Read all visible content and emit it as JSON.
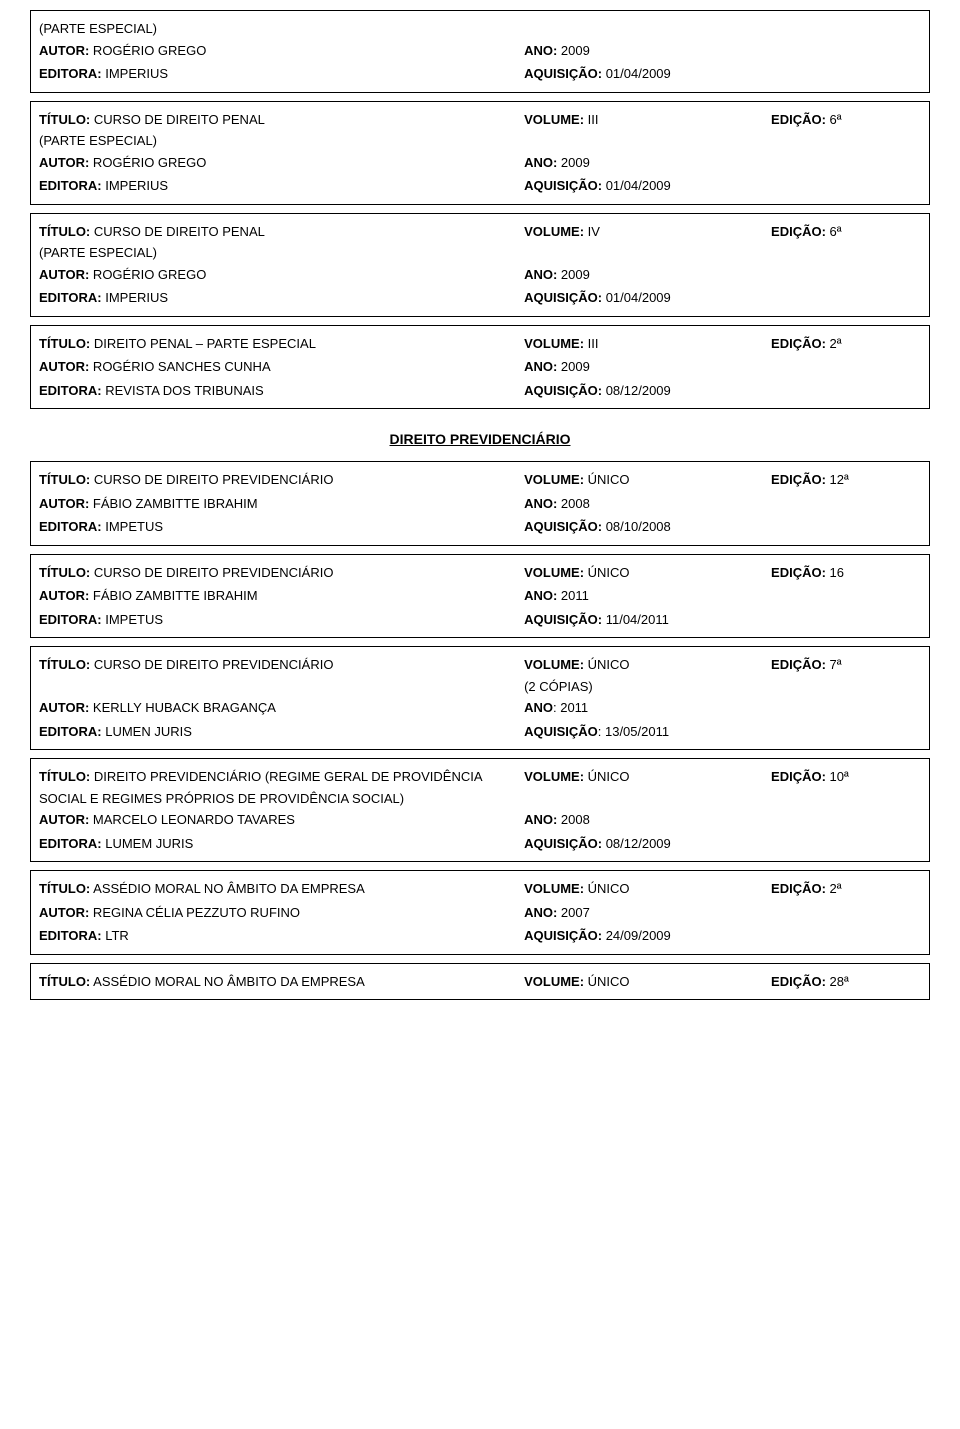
{
  "headingPrevidenciario": "DIREITO PREVIDENCIÁRIO",
  "entries": [
    {
      "lines": [
        {
          "left_parts": [
            "(PARTE ESPECIAL)"
          ],
          "mid": "",
          "right": ""
        },
        {
          "left_parts": [
            "AUTOR:",
            " ROGÉRIO GREGO"
          ],
          "mid_parts": [
            "ANO:",
            " 2009"
          ],
          "right": ""
        },
        {
          "left_parts": [
            ""
          ],
          "mid": "",
          "right": ""
        },
        {
          "left_parts": [
            "EDITORA:",
            " IMPERIUS"
          ],
          "mid_parts": [
            "AQUISIÇÃO:",
            " 01/04/2009"
          ],
          "right": ""
        }
      ]
    },
    {
      "lines": [
        {
          "left_parts": [
            "TÍTULO:",
            " CURSO DE DIREITO PENAL"
          ],
          "mid_parts": [
            "VOLUME:",
            " III"
          ],
          "right_parts": [
            "EDIÇÃO:",
            " 6ª"
          ]
        },
        {
          "left_parts": [
            "(PARTE ESPECIAL)"
          ],
          "mid": "",
          "right": ""
        },
        {
          "left_parts": [
            "AUTOR:",
            " ROGÉRIO GREGO"
          ],
          "mid_parts": [
            "ANO:",
            " 2009"
          ],
          "right": ""
        },
        {
          "left_parts": [
            ""
          ],
          "mid": "",
          "right": ""
        },
        {
          "left_parts": [
            "EDITORA:",
            " IMPERIUS"
          ],
          "mid_parts": [
            "AQUISIÇÃO:",
            " 01/04/2009"
          ],
          "right": ""
        }
      ]
    },
    {
      "lines": [
        {
          "left_parts": [
            "TÍTULO:",
            " CURSO DE DIREITO PENAL"
          ],
          "mid_parts": [
            "VOLUME:",
            " IV"
          ],
          "right_parts": [
            "EDIÇÃO:",
            " 6ª"
          ]
        },
        {
          "left_parts": [
            "(PARTE ESPECIAL)"
          ],
          "mid": "",
          "right": ""
        },
        {
          "left_parts": [
            "AUTOR:",
            " ROGÉRIO GREGO"
          ],
          "mid_parts": [
            "ANO:",
            " 2009"
          ],
          "right": ""
        },
        {
          "left_parts": [
            ""
          ],
          "mid": "",
          "right": ""
        },
        {
          "left_parts": [
            "EDITORA:",
            " IMPERIUS"
          ],
          "mid_parts": [
            "AQUISIÇÃO:",
            " 01/04/2009"
          ],
          "right": ""
        }
      ]
    },
    {
      "lines": [
        {
          "left_parts": [
            "TÍTULO:",
            " DIREITO PENAL – PARTE ESPECIAL"
          ],
          "mid_parts": [
            "VOLUME:",
            " III"
          ],
          "right_parts": [
            "EDIÇÃO:",
            " 2ª"
          ]
        },
        {
          "left_parts": [
            ""
          ],
          "mid": "",
          "right": ""
        },
        {
          "left_parts": [
            "AUTOR:",
            " ROGÉRIO SANCHES CUNHA"
          ],
          "mid_parts": [
            "ANO:",
            " 2009"
          ],
          "right": ""
        },
        {
          "left_parts": [
            ""
          ],
          "mid": "",
          "right": ""
        },
        {
          "left_parts": [
            "EDITORA:",
            " REVISTA DOS TRIBUNAIS"
          ],
          "mid_parts": [
            "AQUISIÇÃO:",
            " 08/12/2009"
          ],
          "right": ""
        }
      ]
    }
  ],
  "entries2": [
    {
      "lines": [
        {
          "left_parts": [
            "TÍTULO:",
            " CURSO DE DIREITO PREVIDENCIÁRIO"
          ],
          "mid_parts": [
            "VOLUME:",
            " ÚNICO"
          ],
          "right_parts": [
            "EDIÇÃO:",
            " 12ª"
          ]
        },
        {
          "left_parts": [
            ""
          ],
          "mid": "",
          "right": ""
        },
        {
          "left_parts": [
            "AUTOR:",
            " FÁBIO ZAMBITTE IBRAHIM"
          ],
          "mid_parts": [
            "ANO:",
            " 2008"
          ],
          "right": ""
        },
        {
          "left_parts": [
            ""
          ],
          "mid": "",
          "right": ""
        },
        {
          "left_parts": [
            "EDITORA:",
            " IMPETUS"
          ],
          "mid_parts": [
            "AQUISIÇÃO:",
            " 08/10/2008"
          ],
          "right": ""
        }
      ]
    },
    {
      "lines": [
        {
          "left_parts": [
            "TÍTULO:",
            " CURSO DE DIREITO PREVIDENCIÁRIO"
          ],
          "mid_parts": [
            "VOLUME:",
            " ÚNICO"
          ],
          "right_parts": [
            "EDIÇÃO:",
            " 16"
          ]
        },
        {
          "left_parts": [
            ""
          ],
          "mid": "",
          "right": ""
        },
        {
          "left_parts": [
            "AUTOR:",
            " FÁBIO ZAMBITTE IBRAHIM"
          ],
          "mid_parts": [
            "ANO:",
            " 2011"
          ],
          "right": ""
        },
        {
          "left_parts": [
            ""
          ],
          "mid": "",
          "right": ""
        },
        {
          "left_parts": [
            "EDITORA:",
            " IMPETUS"
          ],
          "mid_parts": [
            "AQUISIÇÃO:",
            " 11/04/2011"
          ],
          "right": ""
        }
      ]
    },
    {
      "lines": [
        {
          "left_parts": [
            "TÍTULO:",
            " CURSO DE DIREITO PREVIDENCIÁRIO"
          ],
          "mid_parts": [
            "VOLUME:",
            " ÚNICO"
          ],
          "right_parts": [
            "EDIÇÃO:",
            " 7ª"
          ]
        },
        {
          "left_parts": [
            ""
          ],
          "mid_parts": [
            "(2 CÓPIAS)"
          ],
          "right": ""
        },
        {
          "left_parts": [
            "AUTOR:",
            " KERLLY HUBACK BRAGANÇA"
          ],
          "mid_parts": [
            "ANO",
            ": 2011"
          ],
          "right": ""
        },
        {
          "left_parts": [
            ""
          ],
          "mid": "",
          "right": ""
        },
        {
          "left_parts": [
            "EDITORA:",
            " LUMEN JURIS"
          ],
          "mid_parts": [
            "AQUISIÇÃO",
            ": 13/05/2011"
          ],
          "right": ""
        }
      ]
    },
    {
      "lines": [
        {
          "left_parts": [
            "TÍTULO:",
            " DIREITO PREVIDENCIÁRIO (REGIME GERAL DE PROVIDÊNCIA"
          ],
          "mid_parts": [
            "VOLUME:",
            " ÚNICO"
          ],
          "right_parts": [
            "EDIÇÃO:",
            " 10ª"
          ]
        },
        {
          "left_parts": [
            "SOCIAL E REGIMES PRÓPRIOS DE PROVIDÊNCIA SOCIAL)"
          ],
          "mid": "",
          "right": ""
        },
        {
          "left_parts": [
            "AUTOR:",
            " MARCELO LEONARDO TAVARES"
          ],
          "mid_parts": [
            "ANO:",
            " 2008"
          ],
          "right": ""
        },
        {
          "left_parts": [
            ""
          ],
          "mid": "",
          "right": ""
        },
        {
          "left_parts": [
            "EDITORA:",
            " LUMEM JURIS"
          ],
          "mid_parts": [
            "AQUISIÇÃO:",
            " 08/12/2009"
          ],
          "right": ""
        }
      ]
    },
    {
      "lines": [
        {
          "left_parts": [
            "TÍTULO:",
            " ASSÉDIO MORAL NO ÂMBITO DA EMPRESA"
          ],
          "mid_parts": [
            "VOLUME:",
            " ÚNICO"
          ],
          "right_parts": [
            "EDIÇÃO:",
            " 2ª"
          ]
        },
        {
          "left_parts": [
            ""
          ],
          "mid": "",
          "right": ""
        },
        {
          "left_parts": [
            "AUTOR:",
            " REGINA CÉLIA PEZZUTO RUFINO"
          ],
          "mid_parts": [
            "ANO:",
            " 2007"
          ],
          "right": ""
        },
        {
          "left_parts": [
            ""
          ],
          "mid": "",
          "right": ""
        },
        {
          "left_parts": [
            "EDITORA:",
            " LTR"
          ],
          "mid_parts": [
            "AQUISIÇÃO:",
            " 24/09/2009"
          ],
          "right": ""
        }
      ]
    },
    {
      "lines": [
        {
          "left_parts": [
            "TÍTULO:",
            " ASSÉDIO MORAL NO ÂMBITO DA EMPRESA"
          ],
          "mid_parts": [
            "VOLUME:",
            " ÚNICO"
          ],
          "right_parts": [
            "EDIÇÃO:",
            " 28ª"
          ]
        }
      ]
    }
  ]
}
